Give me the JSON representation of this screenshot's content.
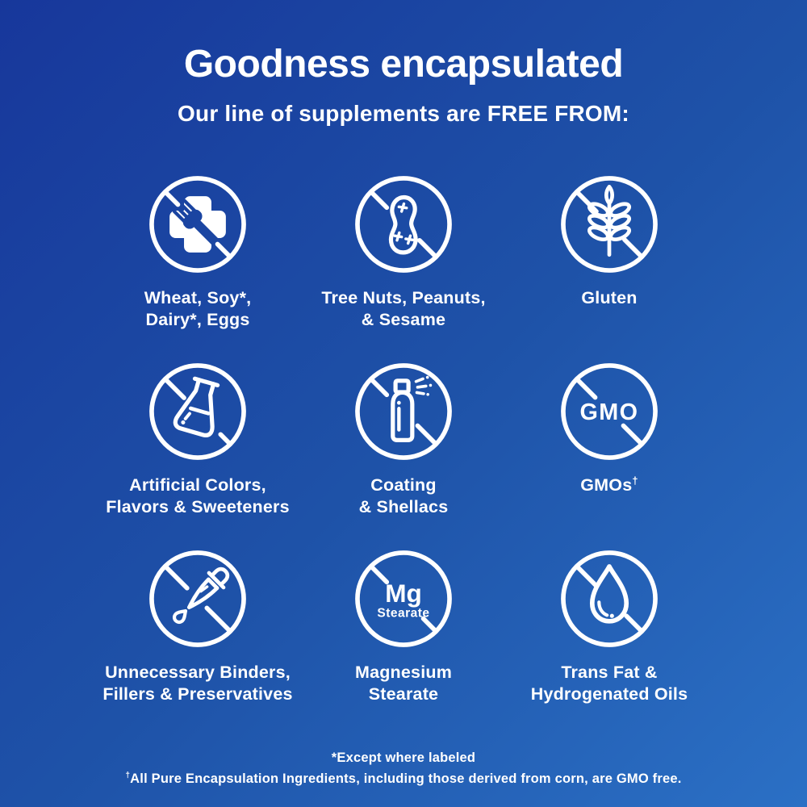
{
  "background": {
    "gradient_start": "#17379b",
    "gradient_mid": "#1e52a8",
    "gradient_end": "#2b70c5",
    "text_color": "#ffffff"
  },
  "header": {
    "title": "Goodness encapsulated",
    "subtitle": "Our line of supplements are FREE FROM:"
  },
  "free_from_grid": {
    "items": [
      {
        "icon": "no-cross-fork-icon",
        "label_lines": [
          "Wheat, Soy*,",
          "Dairy*, Eggs"
        ]
      },
      {
        "icon": "no-peanut-icon",
        "label_lines": [
          "Tree Nuts, Peanuts,",
          "& Sesame"
        ]
      },
      {
        "icon": "no-wheat-icon",
        "label_lines": [
          "Gluten"
        ]
      },
      {
        "icon": "no-flask-icon",
        "label_lines": [
          "Artificial Colors,",
          "Flavors & Sweeteners"
        ]
      },
      {
        "icon": "no-spray-can-icon",
        "label_lines": [
          "Coating",
          "& Shellacs"
        ]
      },
      {
        "icon": "no-gmo-icon",
        "label_lines": [
          "GMOs†"
        ],
        "icon_text": "GMO"
      },
      {
        "icon": "no-dropper-icon",
        "label_lines": [
          "Unnecessary Binders,",
          "Fillers & Preservatives"
        ]
      },
      {
        "icon": "no-mg-stearate-icon",
        "label_lines": [
          "Magnesium",
          "Stearate"
        ],
        "icon_text": "Mg Stearate"
      },
      {
        "icon": "no-oil-drop-icon",
        "label_lines": [
          "Trans Fat &",
          "Hydrogenated Oils"
        ]
      }
    ]
  },
  "footnotes": [
    "*Except where labeled",
    "†All Pure Encapsulation Ingredients, including those derived from corn, are GMO free."
  ]
}
